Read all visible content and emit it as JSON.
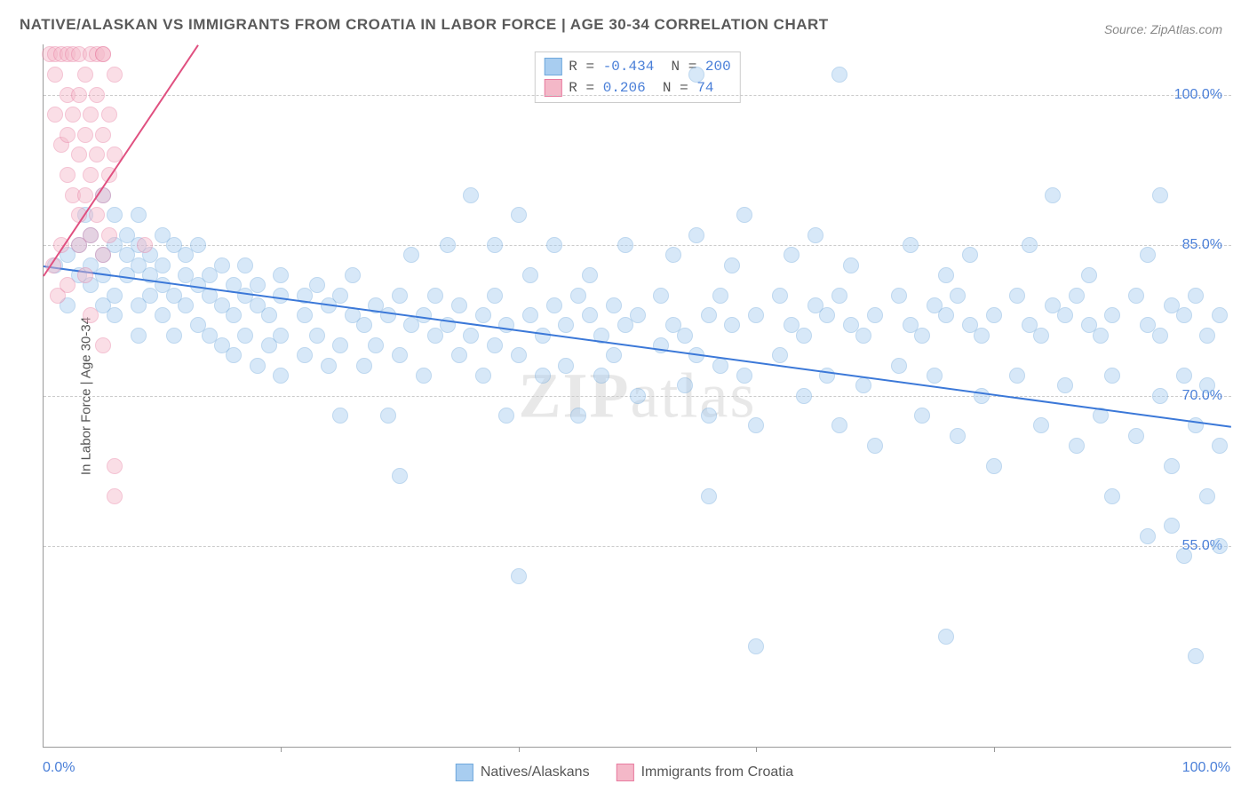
{
  "title": "NATIVE/ALASKAN VS IMMIGRANTS FROM CROATIA IN LABOR FORCE | AGE 30-34 CORRELATION CHART",
  "source_label": "Source: ZipAtlas.com",
  "y_axis_label": "In Labor Force | Age 30-34",
  "watermark": "ZIPatlas",
  "chart": {
    "type": "scatter",
    "background_color": "#ffffff",
    "grid_color": "#cccccc",
    "axis_color": "#999999",
    "label_color": "#4a7fd8",
    "xlim": [
      0,
      100
    ],
    "ylim": [
      35,
      105
    ],
    "x_ticks": [
      0,
      20,
      40,
      60,
      80,
      100
    ],
    "x_tick_labels": [
      "0.0%",
      "",
      "",
      "",
      "",
      "100.0%"
    ],
    "y_ticks": [
      55,
      70,
      85,
      100
    ],
    "y_tick_labels": [
      "55.0%",
      "70.0%",
      "85.0%",
      "100.0%"
    ],
    "point_radius": 9,
    "point_opacity": 0.45,
    "series": [
      {
        "name": "Natives/Alaskans",
        "color_fill": "#a8cdf0",
        "color_stroke": "#6fa8dc",
        "R": "-0.434",
        "N": "200",
        "trend": {
          "x1": 0,
          "y1": 83,
          "x2": 100,
          "y2": 67,
          "color": "#3b78d8",
          "width": 2
        },
        "points": [
          [
            1,
            83
          ],
          [
            2,
            84
          ],
          [
            2,
            79
          ],
          [
            3,
            85
          ],
          [
            3,
            82
          ],
          [
            3.5,
            88
          ],
          [
            4,
            83
          ],
          [
            4,
            81
          ],
          [
            4,
            86
          ],
          [
            5,
            79
          ],
          [
            5,
            82
          ],
          [
            5,
            84
          ],
          [
            5,
            90
          ],
          [
            6,
            85
          ],
          [
            6,
            80
          ],
          [
            6,
            78
          ],
          [
            6,
            88
          ],
          [
            7,
            84
          ],
          [
            7,
            82
          ],
          [
            7,
            86
          ],
          [
            8,
            83
          ],
          [
            8,
            79
          ],
          [
            8,
            76
          ],
          [
            8,
            88
          ],
          [
            8,
            85
          ],
          [
            9,
            80
          ],
          [
            9,
            84
          ],
          [
            9,
            82
          ],
          [
            10,
            81
          ],
          [
            10,
            86
          ],
          [
            10,
            83
          ],
          [
            10,
            78
          ],
          [
            11,
            85
          ],
          [
            11,
            80
          ],
          [
            11,
            76
          ],
          [
            12,
            82
          ],
          [
            12,
            84
          ],
          [
            12,
            79
          ],
          [
            13,
            81
          ],
          [
            13,
            77
          ],
          [
            13,
            85
          ],
          [
            14,
            80
          ],
          [
            14,
            76
          ],
          [
            14,
            82
          ],
          [
            15,
            79
          ],
          [
            15,
            83
          ],
          [
            15,
            75
          ],
          [
            16,
            78
          ],
          [
            16,
            81
          ],
          [
            16,
            74
          ],
          [
            17,
            80
          ],
          [
            17,
            76
          ],
          [
            17,
            83
          ],
          [
            18,
            79
          ],
          [
            18,
            73
          ],
          [
            18,
            81
          ],
          [
            19,
            78
          ],
          [
            19,
            75
          ],
          [
            20,
            80
          ],
          [
            20,
            76
          ],
          [
            20,
            82
          ],
          [
            20,
            72
          ],
          [
            22,
            78
          ],
          [
            22,
            74
          ],
          [
            22,
            80
          ],
          [
            23,
            81
          ],
          [
            23,
            76
          ],
          [
            24,
            79
          ],
          [
            24,
            73
          ],
          [
            25,
            80
          ],
          [
            25,
            75
          ],
          [
            25,
            68
          ],
          [
            26,
            78
          ],
          [
            26,
            82
          ],
          [
            27,
            77
          ],
          [
            27,
            73
          ],
          [
            28,
            79
          ],
          [
            28,
            75
          ],
          [
            29,
            78
          ],
          [
            29,
            68
          ],
          [
            30,
            80
          ],
          [
            30,
            74
          ],
          [
            30,
            62
          ],
          [
            31,
            77
          ],
          [
            31,
            84
          ],
          [
            32,
            78
          ],
          [
            32,
            72
          ],
          [
            33,
            76
          ],
          [
            33,
            80
          ],
          [
            34,
            77
          ],
          [
            34,
            85
          ],
          [
            35,
            74
          ],
          [
            35,
            79
          ],
          [
            36,
            90
          ],
          [
            36,
            76
          ],
          [
            37,
            78
          ],
          [
            37,
            72
          ],
          [
            38,
            80
          ],
          [
            38,
            75
          ],
          [
            38,
            85
          ],
          [
            39,
            77
          ],
          [
            39,
            68
          ],
          [
            40,
            88
          ],
          [
            40,
            74
          ],
          [
            40,
            52
          ],
          [
            41,
            78
          ],
          [
            41,
            82
          ],
          [
            42,
            76
          ],
          [
            42,
            72
          ],
          [
            43,
            79
          ],
          [
            43,
            85
          ],
          [
            44,
            77
          ],
          [
            44,
            73
          ],
          [
            45,
            80
          ],
          [
            45,
            68
          ],
          [
            46,
            78
          ],
          [
            46,
            82
          ],
          [
            47,
            76
          ],
          [
            47,
            72
          ],
          [
            48,
            79
          ],
          [
            48,
            74
          ],
          [
            49,
            77
          ],
          [
            49,
            85
          ],
          [
            50,
            78
          ],
          [
            50,
            70
          ],
          [
            52,
            80
          ],
          [
            52,
            75
          ],
          [
            53,
            77
          ],
          [
            53,
            84
          ],
          [
            54,
            76
          ],
          [
            54,
            71
          ],
          [
            55,
            86
          ],
          [
            55,
            74
          ],
          [
            55,
            102
          ],
          [
            56,
            78
          ],
          [
            56,
            68
          ],
          [
            56,
            60
          ],
          [
            57,
            80
          ],
          [
            57,
            73
          ],
          [
            58,
            77
          ],
          [
            58,
            83
          ],
          [
            59,
            88
          ],
          [
            59,
            72
          ],
          [
            60,
            78
          ],
          [
            60,
            67
          ],
          [
            60,
            45
          ],
          [
            62,
            80
          ],
          [
            62,
            74
          ],
          [
            63,
            77
          ],
          [
            63,
            84
          ],
          [
            64,
            76
          ],
          [
            64,
            70
          ],
          [
            65,
            79
          ],
          [
            65,
            86
          ],
          [
            66,
            78
          ],
          [
            66,
            72
          ],
          [
            67,
            102
          ],
          [
            67,
            80
          ],
          [
            67,
            67
          ],
          [
            68,
            77
          ],
          [
            68,
            83
          ],
          [
            69,
            76
          ],
          [
            69,
            71
          ],
          [
            70,
            78
          ],
          [
            70,
            65
          ],
          [
            72,
            80
          ],
          [
            72,
            73
          ],
          [
            73,
            77
          ],
          [
            73,
            85
          ],
          [
            74,
            76
          ],
          [
            74,
            68
          ],
          [
            75,
            79
          ],
          [
            75,
            72
          ],
          [
            76,
            78
          ],
          [
            76,
            82
          ],
          [
            76,
            46
          ],
          [
            77,
            80
          ],
          [
            77,
            66
          ],
          [
            78,
            77
          ],
          [
            78,
            84
          ],
          [
            79,
            76
          ],
          [
            79,
            70
          ],
          [
            80,
            78
          ],
          [
            80,
            63
          ],
          [
            82,
            80
          ],
          [
            82,
            72
          ],
          [
            83,
            77
          ],
          [
            83,
            85
          ],
          [
            84,
            76
          ],
          [
            84,
            67
          ],
          [
            85,
            79
          ],
          [
            85,
            90
          ],
          [
            86,
            78
          ],
          [
            86,
            71
          ],
          [
            87,
            80
          ],
          [
            87,
            65
          ],
          [
            88,
            77
          ],
          [
            88,
            82
          ],
          [
            89,
            76
          ],
          [
            89,
            68
          ],
          [
            90,
            78
          ],
          [
            90,
            72
          ],
          [
            90,
            60
          ],
          [
            92,
            80
          ],
          [
            92,
            66
          ],
          [
            93,
            77
          ],
          [
            93,
            84
          ],
          [
            93,
            56
          ],
          [
            94,
            76
          ],
          [
            94,
            70
          ],
          [
            94,
            90
          ],
          [
            95,
            79
          ],
          [
            95,
            63
          ],
          [
            95,
            57
          ],
          [
            96,
            78
          ],
          [
            96,
            72
          ],
          [
            96,
            54
          ],
          [
            97,
            80
          ],
          [
            97,
            67
          ],
          [
            97,
            44
          ],
          [
            98,
            76
          ],
          [
            98,
            71
          ],
          [
            98,
            60
          ],
          [
            99,
            78
          ],
          [
            99,
            65
          ],
          [
            99,
            55
          ]
        ]
      },
      {
        "name": "Immigrants from Croatia",
        "color_fill": "#f4b8c8",
        "color_stroke": "#e87ba0",
        "R": "0.206",
        "N": "74",
        "trend": {
          "x1": 0,
          "y1": 82,
          "x2": 13,
          "y2": 105,
          "color": "#e05080",
          "width": 2
        },
        "points": [
          [
            0.5,
            104
          ],
          [
            1,
            104
          ],
          [
            1,
            102
          ],
          [
            1,
            98
          ],
          [
            1.5,
            104
          ],
          [
            1.5,
            95
          ],
          [
            2,
            104
          ],
          [
            2,
            100
          ],
          [
            2,
            96
          ],
          [
            2,
            92
          ],
          [
            2.5,
            104
          ],
          [
            2.5,
            98
          ],
          [
            2.5,
            90
          ],
          [
            3,
            104
          ],
          [
            3,
            100
          ],
          [
            3,
            94
          ],
          [
            3,
            88
          ],
          [
            3,
            85
          ],
          [
            3.5,
            102
          ],
          [
            3.5,
            96
          ],
          [
            3.5,
            90
          ],
          [
            3.5,
            82
          ],
          [
            4,
            104
          ],
          [
            4,
            98
          ],
          [
            4,
            92
          ],
          [
            4,
            86
          ],
          [
            4,
            78
          ],
          [
            4.5,
            104
          ],
          [
            4.5,
            100
          ],
          [
            4.5,
            94
          ],
          [
            4.5,
            88
          ],
          [
            5,
            104
          ],
          [
            5,
            96
          ],
          [
            5,
            90
          ],
          [
            5,
            84
          ],
          [
            5,
            75
          ],
          [
            5,
            104
          ],
          [
            5.5,
            98
          ],
          [
            5.5,
            92
          ],
          [
            5.5,
            86
          ],
          [
            6,
            102
          ],
          [
            6,
            94
          ],
          [
            6,
            63
          ],
          [
            6,
            60
          ],
          [
            0.8,
            83
          ],
          [
            1.2,
            80
          ],
          [
            1.5,
            85
          ],
          [
            2,
            81
          ],
          [
            8.5,
            85
          ]
        ]
      }
    ]
  },
  "legend_bottom": [
    {
      "label": "Natives/Alaskans",
      "fill": "#a8cdf0",
      "stroke": "#6fa8dc"
    },
    {
      "label": "Immigrants from Croatia",
      "fill": "#f4b8c8",
      "stroke": "#e87ba0"
    }
  ]
}
